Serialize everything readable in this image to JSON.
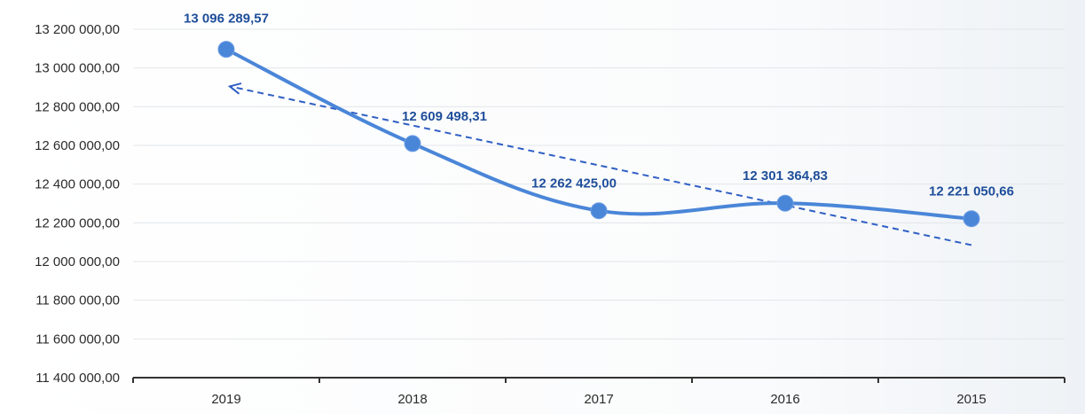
{
  "chart_data": {
    "type": "line",
    "title": "",
    "xlabel": "",
    "ylabel": "",
    "categories": [
      "2019",
      "2018",
      "2017",
      "2016",
      "2015"
    ],
    "series": [
      {
        "values": [
          13096289.57,
          12609498.31,
          12262425.0,
          12301364.83,
          12221050.66
        ],
        "data_labels": [
          "13 096 289,57",
          "12 609 498,31",
          "12 262 425,00",
          "12 301 364,83",
          "12 221 050,66"
        ],
        "color": "#4a86d8",
        "style": "smooth-line-with-markers"
      }
    ],
    "trendline": {
      "type": "linear",
      "style": "dashed-with-arrow",
      "color": "#2f5fc4",
      "start": {
        "category": "2019",
        "value": 12905000
      },
      "end": {
        "category": "2015",
        "value": 12085000
      }
    },
    "ylim": [
      11400000,
      13200000
    ],
    "yticks": [
      11400000,
      11600000,
      11800000,
      12000000,
      12200000,
      12400000,
      12600000,
      12800000,
      13000000,
      13200000
    ],
    "ytick_labels": [
      "11 400 000,00",
      "11 600 000,00",
      "11 800 000,00",
      "12 000 000,00",
      "12 200 000,00",
      "12 400 000,00",
      "12 600 000,00",
      "12 800 000,00",
      "13 000 000,00",
      "13 200 000,00"
    ],
    "grid": true,
    "legend": "none"
  }
}
